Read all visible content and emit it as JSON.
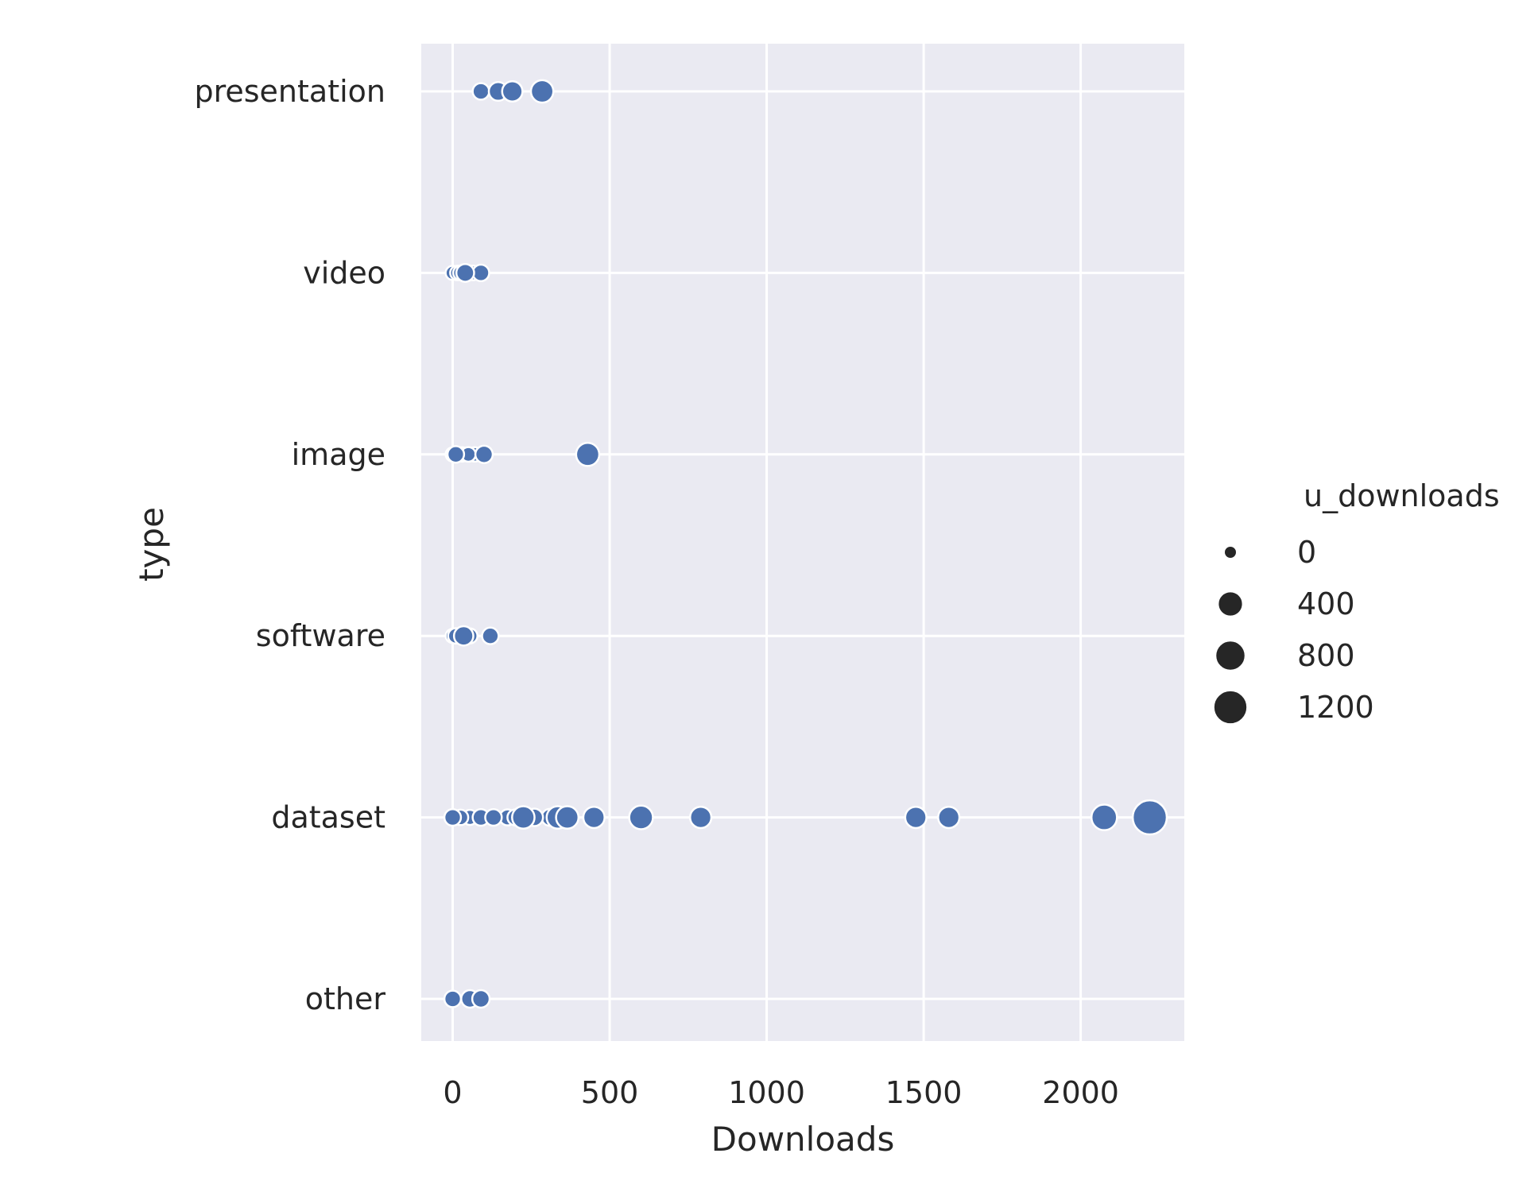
{
  "chart_data": {
    "type": "scatter",
    "xlabel": "Downloads",
    "ylabel": "type",
    "categories": [
      "presentation",
      "video",
      "image",
      "software",
      "dataset",
      "other"
    ],
    "xlim": [
      -100,
      2330
    ],
    "xticks": [
      0,
      500,
      1000,
      1500,
      2000
    ],
    "grid": true,
    "legend": {
      "title": "u_downloads",
      "placement": "right",
      "entries": [
        {
          "label": "0",
          "size_value": 0
        },
        {
          "label": "400",
          "size_value": 400
        },
        {
          "label": "800",
          "size_value": 800
        },
        {
          "label": "1200",
          "size_value": 1200
        }
      ]
    },
    "marker_color": "#4c72b0",
    "points": [
      {
        "type": "presentation",
        "x": 90,
        "u": 40
      },
      {
        "type": "presentation",
        "x": 145,
        "u": 100
      },
      {
        "type": "presentation",
        "x": 190,
        "u": 160
      },
      {
        "type": "presentation",
        "x": 285,
        "u": 260
      },
      {
        "type": "video",
        "x": 0,
        "u": 5
      },
      {
        "type": "video",
        "x": 15,
        "u": 8
      },
      {
        "type": "video",
        "x": 25,
        "u": 10
      },
      {
        "type": "video",
        "x": 40,
        "u": 70
      },
      {
        "type": "video",
        "x": 65,
        "u": 10
      },
      {
        "type": "video",
        "x": 90,
        "u": 40
      },
      {
        "type": "image",
        "x": 0,
        "u": 5
      },
      {
        "type": "image",
        "x": 10,
        "u": 40
      },
      {
        "type": "image",
        "x": 30,
        "u": 8
      },
      {
        "type": "image",
        "x": 50,
        "u": 10
      },
      {
        "type": "image",
        "x": 70,
        "u": 8
      },
      {
        "type": "image",
        "x": 100,
        "u": 60
      },
      {
        "type": "image",
        "x": 430,
        "u": 300
      },
      {
        "type": "software",
        "x": 0,
        "u": 5
      },
      {
        "type": "software",
        "x": 10,
        "u": 20
      },
      {
        "type": "software",
        "x": 20,
        "u": 8
      },
      {
        "type": "software",
        "x": 35,
        "u": 120
      },
      {
        "type": "software",
        "x": 55,
        "u": 15
      },
      {
        "type": "software",
        "x": 120,
        "u": 40
      },
      {
        "type": "dataset",
        "x": 0,
        "u": 40
      },
      {
        "type": "dataset",
        "x": 25,
        "u": 20
      },
      {
        "type": "dataset",
        "x": 55,
        "u": 15
      },
      {
        "type": "dataset",
        "x": 90,
        "u": 40
      },
      {
        "type": "dataset",
        "x": 130,
        "u": 40
      },
      {
        "type": "dataset",
        "x": 175,
        "u": 30
      },
      {
        "type": "dataset",
        "x": 200,
        "u": 30
      },
      {
        "type": "dataset",
        "x": 225,
        "u": 260
      },
      {
        "type": "dataset",
        "x": 260,
        "u": 60
      },
      {
        "type": "dataset",
        "x": 310,
        "u": 50
      },
      {
        "type": "dataset",
        "x": 335,
        "u": 260
      },
      {
        "type": "dataset",
        "x": 365,
        "u": 260
      },
      {
        "type": "dataset",
        "x": 450,
        "u": 200
      },
      {
        "type": "dataset",
        "x": 600,
        "u": 330
      },
      {
        "type": "dataset",
        "x": 790,
        "u": 200
      },
      {
        "type": "dataset",
        "x": 1475,
        "u": 200
      },
      {
        "type": "dataset",
        "x": 1580,
        "u": 200
      },
      {
        "type": "dataset",
        "x": 2075,
        "u": 450
      },
      {
        "type": "dataset",
        "x": 2220,
        "u": 1250
      },
      {
        "type": "other",
        "x": 0,
        "u": 40
      },
      {
        "type": "other",
        "x": 55,
        "u": 60
      },
      {
        "type": "other",
        "x": 90,
        "u": 60
      }
    ]
  }
}
